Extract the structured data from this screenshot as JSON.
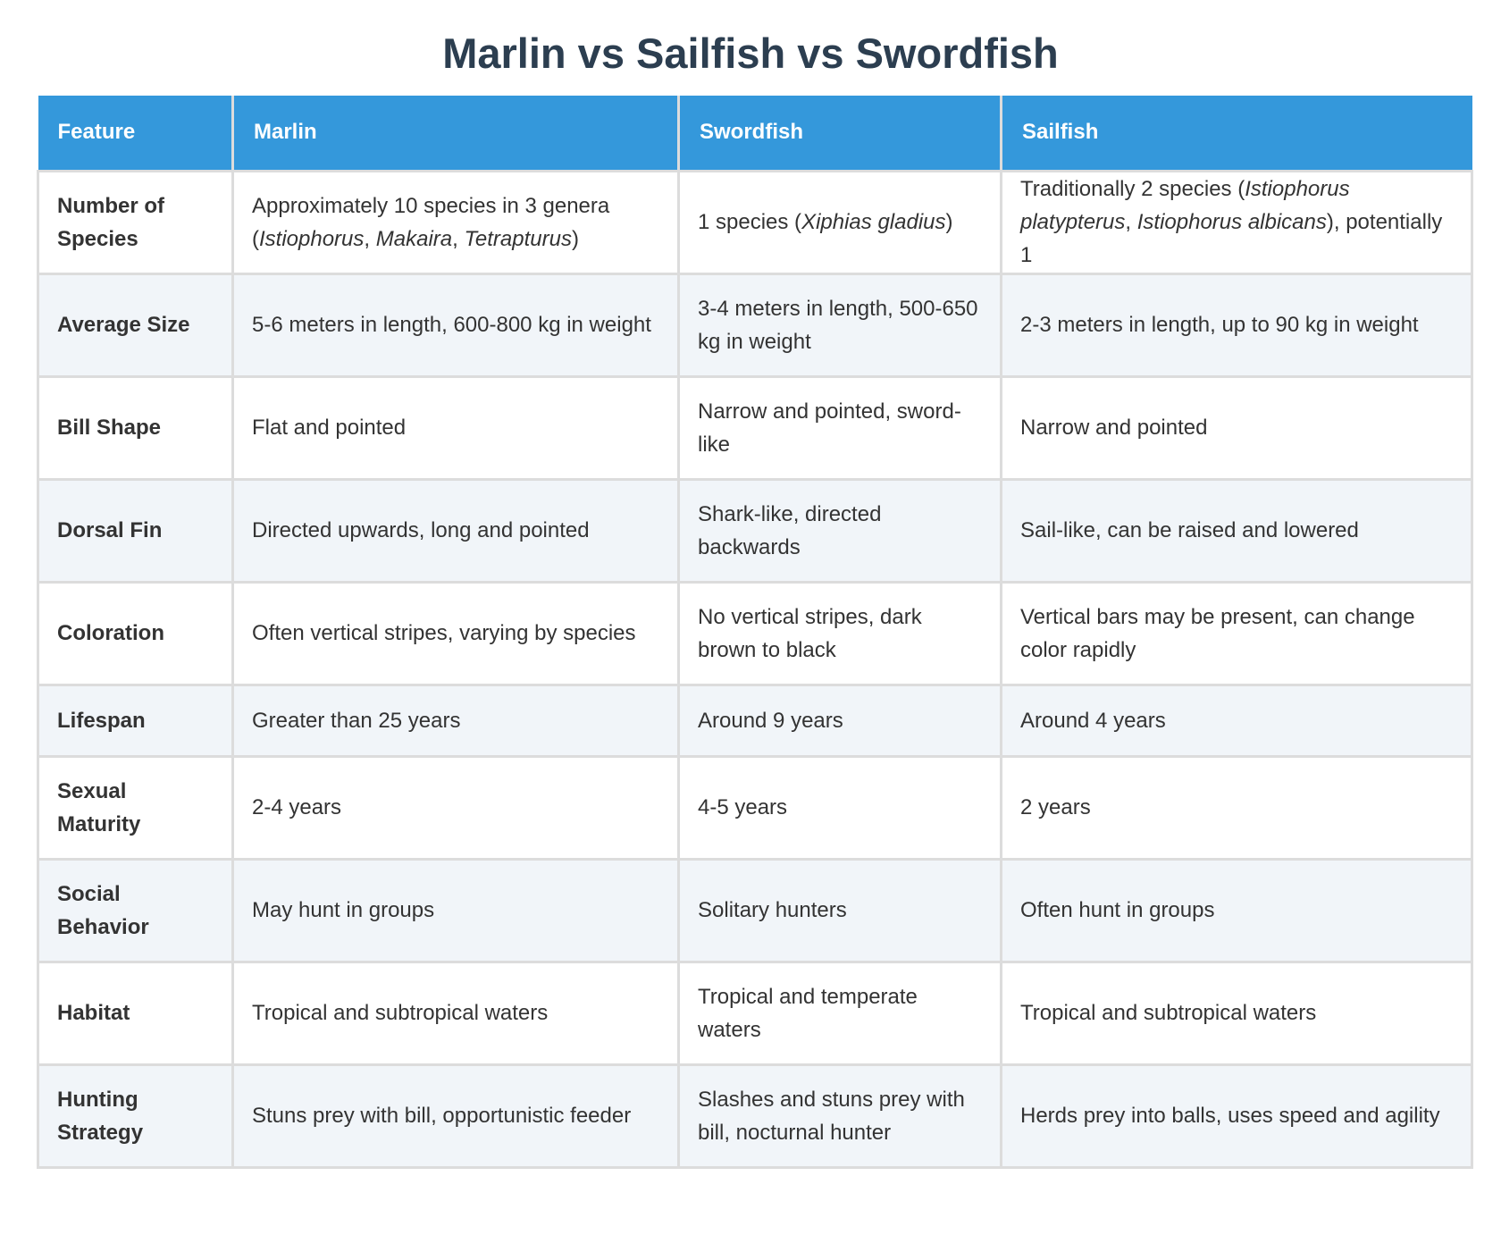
{
  "title": "Marlin vs Sailfish vs Swordfish",
  "columns": [
    "Feature",
    "Marlin",
    "Swordfish",
    "Sailfish"
  ],
  "rows": [
    {
      "feature": "Number of Species",
      "marlin": {
        "pre": "Approximately 10 species in 3 genera (",
        "i1": "Istiophorus",
        "s1": ", ",
        "i2": "Makaira",
        "s2": ", ",
        "i3": "Tetrapturus",
        "post": ")"
      },
      "swordfish": {
        "pre": "1 species (",
        "i1": "Xiphias gladius",
        "post": ")"
      },
      "sailfish": {
        "pre": "Traditionally 2 species (",
        "i1": "Istiophorus platypterus",
        "s1": ", ",
        "i2": "Istiophorus albicans",
        "post": "), potentially 1"
      }
    },
    {
      "feature": "Average Size",
      "marlin": "5-6 meters in length, 600-800 kg in weight",
      "swordfish": "3-4 meters in length, 500-650 kg in weight",
      "sailfish": "2-3 meters in length, up to 90 kg in weight"
    },
    {
      "feature": "Bill Shape",
      "marlin": "Flat and pointed",
      "swordfish": "Narrow and pointed, sword-like",
      "sailfish": "Narrow and pointed"
    },
    {
      "feature": "Dorsal Fin",
      "marlin": "Directed upwards, long and pointed",
      "swordfish": "Shark-like, directed backwards",
      "sailfish": "Sail-like, can be raised and lowered"
    },
    {
      "feature": "Coloration",
      "marlin": "Often vertical stripes, varying by species",
      "swordfish": "No vertical stripes, dark brown to black",
      "sailfish": "Vertical bars may be present, can change color rapidly"
    },
    {
      "feature": "Lifespan",
      "marlin": "Greater than 25 years",
      "swordfish": "Around 9 years",
      "sailfish": "Around 4 years"
    },
    {
      "feature": "Sexual Maturity",
      "marlin": "2-4 years",
      "swordfish": "4-5 years",
      "sailfish": "2 years"
    },
    {
      "feature": "Social Behavior",
      "marlin": "May hunt in groups",
      "swordfish": "Solitary hunters",
      "sailfish": "Often hunt in groups"
    },
    {
      "feature": "Habitat",
      "marlin": "Tropical and subtropical waters",
      "swordfish": "Tropical and temperate waters",
      "sailfish": "Tropical and subtropical waters"
    },
    {
      "feature": "Hunting Strategy",
      "marlin": "Stuns prey with bill, opportunistic feeder",
      "swordfish": "Slashes and stuns prey with bill, nocturnal hunter",
      "sailfish": "Herds prey into balls, uses speed and agility"
    }
  ]
}
